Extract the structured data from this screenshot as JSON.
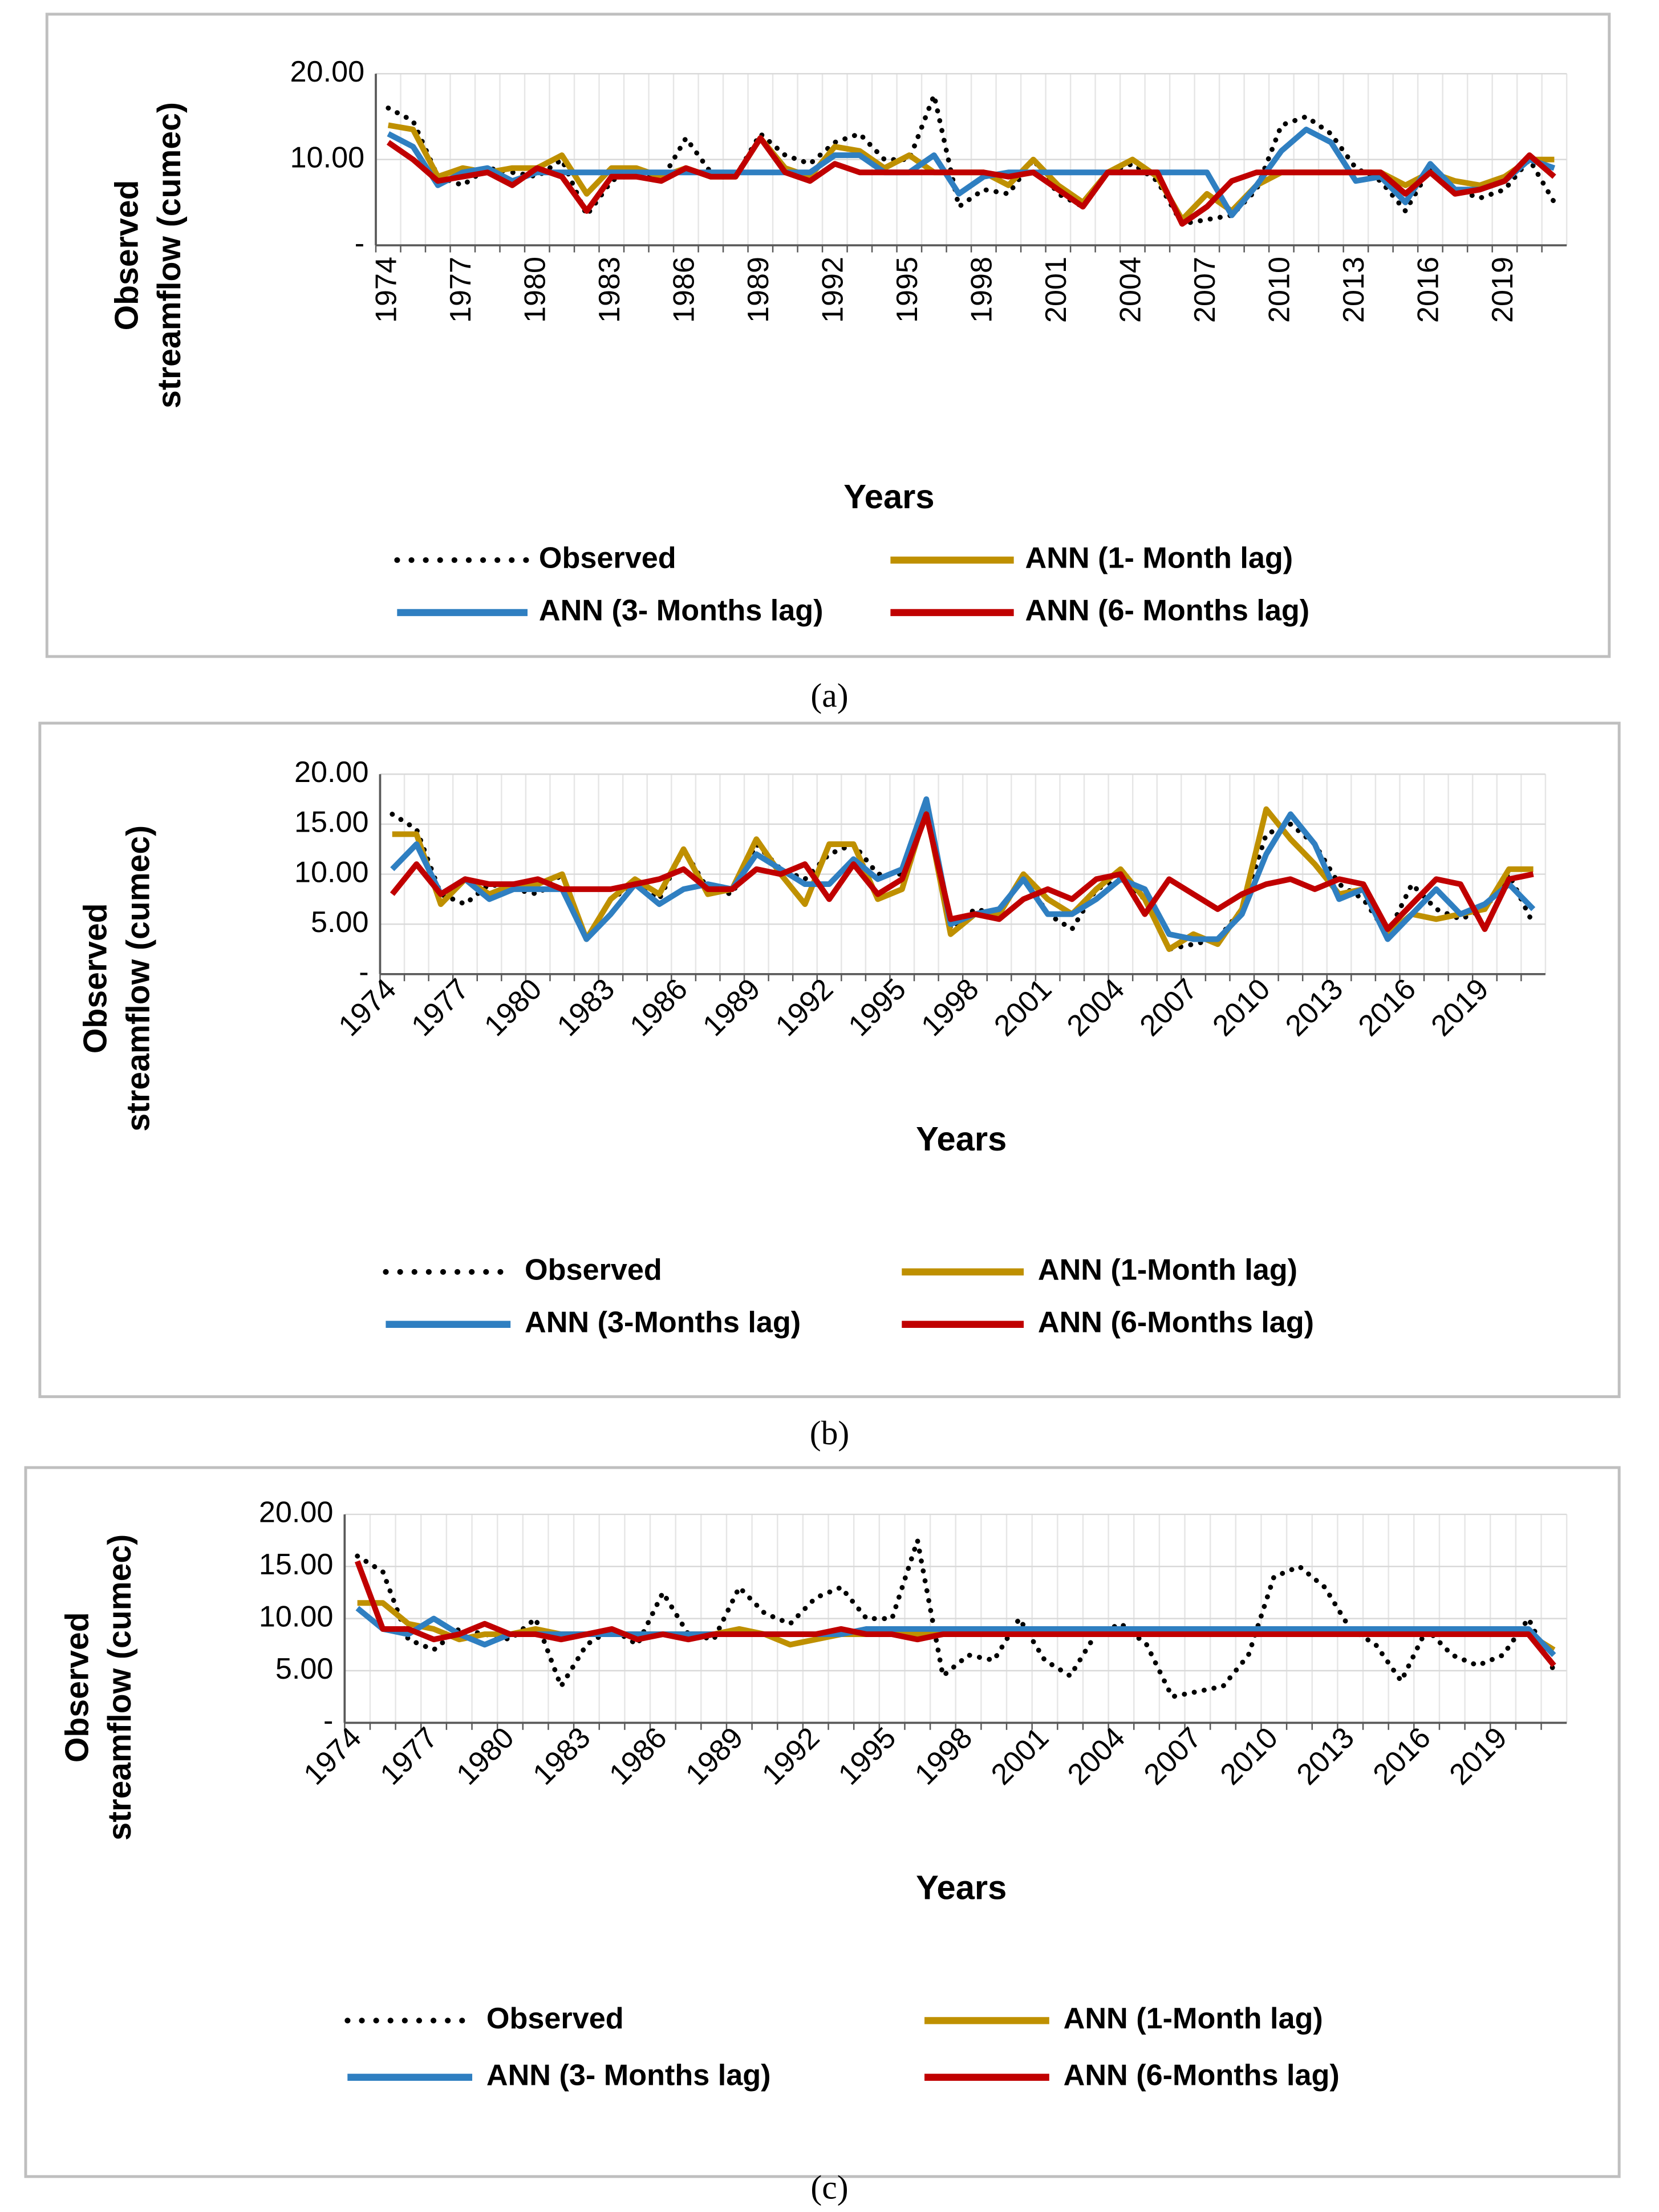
{
  "chart_data": [
    {
      "type": "line",
      "caption": "(a)",
      "x_label": "Years",
      "y_label": "Observed streamflow (cumec)",
      "categories": [
        "1974",
        null,
        null,
        "1977",
        null,
        null,
        "1980",
        null,
        null,
        "1983",
        null,
        null,
        "1986",
        null,
        null,
        "1989",
        null,
        null,
        "1992",
        null,
        null,
        "1995",
        null,
        null,
        "1998",
        null,
        null,
        "2001",
        null,
        null,
        "2004",
        null,
        null,
        "2007",
        null,
        null,
        "2010",
        null,
        null,
        "2013",
        null,
        null,
        "2016",
        null,
        null,
        "2019",
        null,
        null
      ],
      "ylim": [
        0,
        20
      ],
      "yticks": [
        {
          "value": 0,
          "label": "-"
        },
        {
          "value": 10,
          "label": "10.00"
        },
        {
          "value": 20,
          "label": "20.00"
        }
      ],
      "grid": true,
      "series": [
        {
          "name": "Observed",
          "color": "#000000",
          "dotted": true,
          "values": [
            16,
            14.5,
            8,
            7,
            9,
            8.5,
            8,
            10,
            3.5,
            7.5,
            9,
            7.5,
            12.5,
            8.5,
            8,
            13,
            10.5,
            9.5,
            12,
            13,
            10,
            10,
            17.5,
            4.5,
            6.5,
            6,
            10,
            6,
            4.5,
            8.5,
            9.5,
            7.5,
            2.5,
            3,
            3.5,
            6.5,
            14,
            15,
            13,
            9,
            7.5,
            4,
            9,
            6.5,
            5.5,
            6.5,
            10,
            5
          ]
        },
        {
          "name": "ANN (1- Month lag)",
          "color": "#bf9000",
          "values": [
            14,
            13.5,
            8,
            9,
            8.5,
            9,
            9,
            10.5,
            6,
            9,
            9,
            8,
            9,
            8,
            8,
            12.5,
            9,
            8,
            11.5,
            11,
            9,
            10.5,
            8.5,
            8.5,
            8.5,
            7,
            10,
            7,
            5,
            8.5,
            10,
            8,
            3,
            6,
            4,
            7,
            8.5,
            8.5,
            8.5,
            8.5,
            8.5,
            7,
            8.5,
            7.5,
            7,
            8,
            10,
            10
          ]
        },
        {
          "name": "ANN (3- Months lag)",
          "color": "#2f7fc1",
          "values": [
            13,
            11.5,
            7,
            8.5,
            9,
            7.5,
            8.5,
            8.5,
            8.5,
            8.5,
            8.5,
            8.5,
            8.5,
            8.5,
            8.5,
            8.5,
            8.5,
            8.5,
            10.5,
            10.5,
            8.5,
            8.5,
            10.5,
            6,
            8,
            8.5,
            8.5,
            8.5,
            8.5,
            8.5,
            8.5,
            8.5,
            8.5,
            8.5,
            3.5,
            7,
            11,
            13.5,
            12,
            7.5,
            8,
            5,
            9.5,
            6.5,
            6.5,
            7.5,
            10,
            9
          ]
        },
        {
          "name": "ANN (6- Months lag)",
          "color": "#c00000",
          "values": [
            12,
            10,
            7.5,
            8,
            8.5,
            7,
            9,
            8,
            4,
            8,
            8,
            7.5,
            9,
            8,
            8,
            12.5,
            8.5,
            7.5,
            9.5,
            8.5,
            8.5,
            8.5,
            8.5,
            8.5,
            8.5,
            8,
            8.5,
            6.5,
            4.5,
            8.5,
            8.5,
            8.5,
            2.5,
            4.5,
            7.5,
            8.5,
            8.5,
            8.5,
            8.5,
            8.5,
            8.5,
            6,
            8.5,
            6,
            6.5,
            7.5,
            10.5,
            8
          ]
        }
      ]
    },
    {
      "type": "line",
      "caption": "(b)",
      "x_label": "Years",
      "y_label": "Observed streamflow (cumec)",
      "categories": [
        "1974",
        null,
        null,
        "1977",
        null,
        null,
        "1980",
        null,
        null,
        "1983",
        null,
        null,
        "1986",
        null,
        null,
        "1989",
        null,
        null,
        "1992",
        null,
        null,
        "1995",
        null,
        null,
        "1998",
        null,
        null,
        "2001",
        null,
        null,
        "2004",
        null,
        null,
        "2007",
        null,
        null,
        "2010",
        null,
        null,
        "2013",
        null,
        null,
        "2016",
        null,
        null,
        "2019",
        null,
        null
      ],
      "ylim": [
        0,
        20
      ],
      "yticks": [
        {
          "value": 0,
          "label": "-"
        },
        {
          "value": 5,
          "label": "5.00"
        },
        {
          "value": 10,
          "label": "10.00"
        },
        {
          "value": 15,
          "label": "15.00"
        },
        {
          "value": 20,
          "label": "20.00"
        }
      ],
      "grid": true,
      "series": [
        {
          "name": "Observed",
          "color": "#000000",
          "dotted": true,
          "values": [
            16,
            14.5,
            8,
            7,
            9,
            8.5,
            8,
            10,
            3.5,
            7.5,
            9,
            7.5,
            12.5,
            8.5,
            8,
            13,
            10.5,
            9.5,
            12,
            13,
            10,
            10,
            17.5,
            4.5,
            6.5,
            6,
            10,
            6,
            4.5,
            8.5,
            9.5,
            7.5,
            2.5,
            3,
            3.5,
            6.5,
            14,
            15,
            13,
            9,
            7.5,
            4,
            9,
            6.5,
            5.5,
            6.5,
            10,
            5
          ]
        },
        {
          "name": "ANN (1-Month lag)",
          "color": "#bf9000",
          "values": [
            14,
            14,
            7,
            9.5,
            8,
            9,
            9,
            10,
            3.5,
            7.5,
            9.5,
            8,
            12.5,
            8,
            8.5,
            13.5,
            10,
            7,
            13,
            13,
            7.5,
            8.5,
            16.5,
            4,
            6,
            6,
            10,
            7.5,
            6,
            8.5,
            10.5,
            7.5,
            2.5,
            4,
            3,
            6.5,
            16.5,
            13.5,
            11,
            8,
            8.5,
            4,
            6,
            5.5,
            6,
            6.5,
            10.5,
            10.5
          ]
        },
        {
          "name": "ANN (3-Months lag)",
          "color": "#2f7fc1",
          "values": [
            10.5,
            13,
            8,
            9.5,
            7.5,
            8.5,
            8.5,
            8.5,
            3.5,
            6,
            9,
            7,
            8.5,
            9,
            8.5,
            12,
            10.5,
            9,
            9,
            11.5,
            9.5,
            10.5,
            17.5,
            5,
            6,
            6.5,
            9.5,
            6,
            6,
            7.5,
            9.5,
            8.5,
            4,
            3.5,
            3.5,
            6,
            12,
            16,
            13,
            7.5,
            8.5,
            3.5,
            6,
            8.5,
            6,
            7,
            9,
            6.5
          ]
        },
        {
          "name": "ANN (6-Months lag)",
          "color": "#c00000",
          "values": [
            8,
            11,
            8,
            9.5,
            9,
            9,
            9.5,
            8.5,
            8.5,
            8.5,
            9,
            9.5,
            10.5,
            8.5,
            8.5,
            10.5,
            10,
            11,
            7.5,
            11,
            8,
            9.5,
            16,
            5.5,
            6,
            5.5,
            7.5,
            8.5,
            7.5,
            9.5,
            10,
            6,
            9.5,
            8,
            6.5,
            8,
            9,
            9.5,
            8.5,
            9.5,
            9,
            4.5,
            7,
            9.5,
            9,
            4.5,
            9.5,
            10
          ]
        }
      ]
    },
    {
      "type": "line",
      "caption": "(c)",
      "x_label": "Years",
      "y_label": "Observed streamflow (cumec)",
      "categories": [
        "1974",
        null,
        null,
        "1977",
        null,
        null,
        "1980",
        null,
        null,
        "1983",
        null,
        null,
        "1986",
        null,
        null,
        "1989",
        null,
        null,
        "1992",
        null,
        null,
        "1995",
        null,
        null,
        "1998",
        null,
        null,
        "2001",
        null,
        null,
        "2004",
        null,
        null,
        "2007",
        null,
        null,
        "2010",
        null,
        null,
        "2013",
        null,
        null,
        "2016",
        null,
        null,
        "2019",
        null,
        null
      ],
      "ylim": [
        0,
        20
      ],
      "yticks": [
        {
          "value": 0,
          "label": "-"
        },
        {
          "value": 5,
          "label": "5.00"
        },
        {
          "value": 10,
          "label": "10.00"
        },
        {
          "value": 15,
          "label": "15.00"
        },
        {
          "value": 20,
          "label": "20.00"
        }
      ],
      "grid": true,
      "series": [
        {
          "name": "Observed",
          "color": "#000000",
          "dotted": true,
          "values": [
            16,
            14.5,
            8,
            7,
            9,
            8.5,
            8,
            10,
            3.5,
            7.5,
            9,
            7.5,
            12.5,
            8.5,
            8,
            13,
            10.5,
            9.5,
            12,
            13,
            10,
            10,
            17.5,
            4.5,
            6.5,
            6,
            10,
            6,
            4.5,
            8.5,
            9.5,
            7.5,
            2.5,
            3,
            3.5,
            6.5,
            14,
            15,
            13,
            9,
            7.5,
            4,
            9,
            6.5,
            5.5,
            6.5,
            10,
            5
          ]
        },
        {
          "name": "ANN (1-Month lag)",
          "color": "#bf9000",
          "values": [
            11.5,
            11.5,
            9.5,
            9,
            8,
            8.5,
            8.5,
            9,
            8.5,
            8.5,
            8.5,
            8.5,
            8.5,
            8.5,
            8.5,
            9,
            8.5,
            7.5,
            8,
            8.5,
            8.5,
            8.5,
            8.5,
            8.5,
            8.5,
            8.5,
            8.5,
            8.5,
            8.5,
            8.5,
            8.5,
            8.5,
            8.5,
            8.5,
            8.5,
            8.5,
            8.5,
            8.5,
            8.5,
            8.5,
            8.5,
            8.5,
            8.5,
            8.5,
            8.5,
            8.5,
            8.5,
            7
          ]
        },
        {
          "name": "ANN (3- Months lag)",
          "color": "#2f7fc1",
          "values": [
            11,
            9,
            8.5,
            10,
            8.5,
            7.5,
            8.5,
            8.5,
            8.5,
            8.5,
            8.5,
            8.5,
            8.5,
            8.5,
            8.5,
            8.5,
            8.5,
            8.5,
            8.5,
            8.5,
            9,
            9,
            9,
            9,
            9,
            9,
            9,
            9,
            9,
            9,
            9,
            9,
            9,
            9,
            9,
            9,
            9,
            9,
            9,
            9,
            9,
            9,
            9,
            9,
            9,
            9,
            9,
            6.5
          ]
        },
        {
          "name": "ANN (6-Months lag)",
          "color": "#c00000",
          "values": [
            15.5,
            9,
            9,
            8,
            8.5,
            9.5,
            8.5,
            8.5,
            8,
            8.5,
            9,
            8,
            8.5,
            8,
            8.5,
            8.5,
            8.5,
            8.5,
            8.5,
            9,
            8.5,
            8.5,
            8,
            8.5,
            8.5,
            8.5,
            8.5,
            8.5,
            8.5,
            8.5,
            8.5,
            8.5,
            8.5,
            8.5,
            8.5,
            8.5,
            8.5,
            8.5,
            8.5,
            8.5,
            8.5,
            8.5,
            8.5,
            8.5,
            8.5,
            8.5,
            8.5,
            5.5
          ]
        }
      ]
    }
  ]
}
